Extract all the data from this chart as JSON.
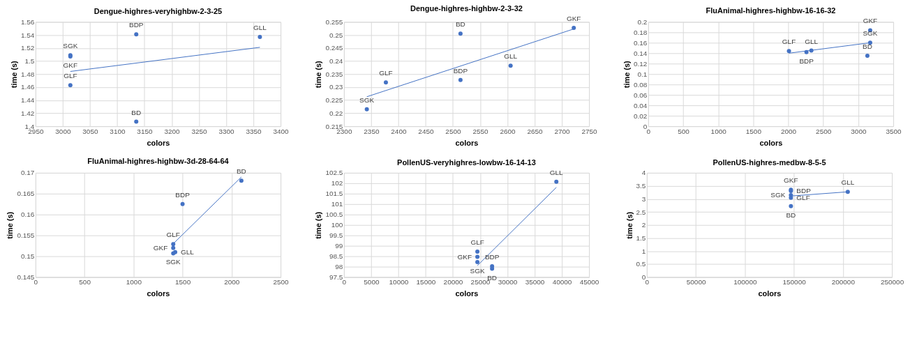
{
  "chart_data": [
    {
      "type": "scatter",
      "title": "Dengue-highres-veryhighbw-2-3-25",
      "xlabel": "colors",
      "ylabel": "time (s)",
      "xlim": [
        2950,
        3400
      ],
      "xticks": [
        2950,
        3000,
        3050,
        3100,
        3150,
        3200,
        3250,
        3300,
        3350,
        3400
      ],
      "ylim": [
        1.4,
        1.56
      ],
      "yticks": [
        1.4,
        1.42,
        1.44,
        1.46,
        1.48,
        1.5,
        1.52,
        1.54,
        1.56
      ],
      "grid": true,
      "marker": "circle",
      "series": [
        {
          "color": "#4472c4",
          "x": [
            3135,
            3362,
            3014,
            3014,
            3014,
            3135
          ],
          "values": [
            1.541,
            1.537,
            1.509,
            1.507,
            1.463,
            1.407
          ]
        },
        {
          "type": "line",
          "color": "#4472c4",
          "marker": "none",
          "x": [
            3014,
            3362
          ],
          "values": [
            1.484,
            1.521
          ]
        }
      ],
      "annotations": [
        {
          "text": "BDP",
          "x": 3135,
          "y": 1.541
        },
        {
          "text": "GLL",
          "x": 3362,
          "y": 1.537
        },
        {
          "text": "SGK",
          "x": 3014,
          "y": 1.509
        },
        {
          "text": "GKF",
          "x": 3014,
          "y": 1.507
        },
        {
          "text": "GLF",
          "x": 3014,
          "y": 1.463
        },
        {
          "text": "BD",
          "x": 3135,
          "y": 1.407
        }
      ]
    },
    {
      "type": "scatter",
      "title": "Dengue-highres-highbw-2-3-32",
      "xlabel": "colors",
      "ylabel": "time (s)",
      "xlim": [
        2300,
        2750
      ],
      "xticks": [
        2300,
        2350,
        2400,
        2450,
        2500,
        2550,
        2600,
        2650,
        2700,
        2750
      ],
      "ylim": [
        0.215,
        0.255
      ],
      "yticks": [
        0.215,
        0.22,
        0.225,
        0.23,
        0.235,
        0.24,
        0.245,
        0.25,
        0.255
      ],
      "grid": true,
      "marker": "circle",
      "series": [
        {
          "color": "#4472c4",
          "x": [
            2514,
            2722,
            2606,
            2514,
            2377,
            2342
          ],
          "values": [
            0.2505,
            0.2527,
            0.2382,
            0.2327,
            0.2318,
            0.2215
          ]
        },
        {
          "type": "line",
          "color": "#4472c4",
          "marker": "none",
          "x": [
            2342,
            2722
          ],
          "values": [
            0.2263,
            0.2523
          ]
        }
      ],
      "annotations": [
        {
          "text": "BD",
          "x": 2514,
          "y": 0.2505
        },
        {
          "text": "GKF",
          "x": 2722,
          "y": 0.2527
        },
        {
          "text": "GLL",
          "x": 2606,
          "y": 0.2382
        },
        {
          "text": "BDP",
          "x": 2514,
          "y": 0.2327
        },
        {
          "text": "GLF",
          "x": 2377,
          "y": 0.2318
        },
        {
          "text": "SGK",
          "x": 2342,
          "y": 0.2215
        }
      ]
    },
    {
      "type": "scatter",
      "title": "FluAnimal-highres-highbw-16-16-32",
      "xlabel": "colors",
      "ylabel": "time (s)",
      "xlim": [
        0,
        3500
      ],
      "xticks": [
        0,
        500,
        1000,
        1500,
        2000,
        2500,
        3000,
        3500
      ],
      "ylim": [
        0,
        0.2
      ],
      "yticks": [
        0,
        0.02,
        0.04,
        0.06,
        0.08,
        0.1,
        0.12,
        0.14,
        0.16,
        0.18,
        0.2
      ],
      "grid": true,
      "marker": "circle",
      "series": [
        {
          "color": "#4472c4",
          "x": [
            2010,
            2260,
            2330,
            3170,
            3170,
            3130
          ],
          "values": [
            0.144,
            0.142,
            0.145,
            0.184,
            0.16,
            0.135
          ]
        },
        {
          "type": "line",
          "color": "#4472c4",
          "marker": "none",
          "x": [
            2010,
            3170
          ],
          "values": [
            0.14,
            0.16
          ]
        }
      ],
      "annotations": [
        {
          "text": "GLF",
          "x": 2010,
          "y": 0.144
        },
        {
          "text": "BDP",
          "x": 2260,
          "y": 0.142
        },
        {
          "text": "GLL",
          "x": 2330,
          "y": 0.145
        },
        {
          "text": "GKF",
          "x": 3170,
          "y": 0.184
        },
        {
          "text": "SGK",
          "x": 3170,
          "y": 0.16
        },
        {
          "text": "BD",
          "x": 3130,
          "y": 0.135
        }
      ]
    },
    {
      "type": "scatter",
      "title": "FluAnimal-highres-highbw-3d-28-64-64",
      "xlabel": "colors",
      "ylabel": "time (s)",
      "xlim": [
        0,
        2500
      ],
      "xticks": [
        0,
        500,
        1000,
        1500,
        2000,
        2500
      ],
      "ylim": [
        0.145,
        0.17
      ],
      "yticks": [
        0.145,
        0.15,
        0.155,
        0.16,
        0.165,
        0.17
      ],
      "grid": true,
      "marker": "circle",
      "series": [
        {
          "color": "#4472c4",
          "x": [
            2100,
            1500,
            1405,
            1405,
            1425,
            1405
          ],
          "values": [
            0.1681,
            0.1625,
            0.1529,
            0.152,
            0.151,
            0.1507
          ]
        },
        {
          "type": "line",
          "color": "#4472c4",
          "marker": "none",
          "x": [
            1405,
            2100
          ],
          "values": [
            0.153,
            0.169
          ]
        }
      ],
      "annotations": [
        {
          "text": "BD",
          "x": 2100,
          "y": 0.1681
        },
        {
          "text": "BDP",
          "x": 1500,
          "y": 0.1625
        },
        {
          "text": "GLF",
          "x": 1405,
          "y": 0.1529
        },
        {
          "text": "GKF",
          "x": 1405,
          "y": 0.152
        },
        {
          "text": "GLL",
          "x": 1425,
          "y": 0.151
        },
        {
          "text": "SGK",
          "x": 1405,
          "y": 0.1507
        }
      ]
    },
    {
      "type": "scatter",
      "title": "PollenUS-veryhighres-lowbw-16-14-13",
      "xlabel": "colors",
      "ylabel": "time (s)",
      "xlim": [
        0,
        45000
      ],
      "xticks": [
        0,
        5000,
        10000,
        15000,
        20000,
        25000,
        30000,
        35000,
        40000,
        45000
      ],
      "ylim": [
        97.5,
        102.5
      ],
      "yticks": [
        97.5,
        98,
        98.5,
        99,
        99.5,
        100,
        100.5,
        101,
        101.5,
        102,
        102.5
      ],
      "grid": true,
      "marker": "circle",
      "series": [
        {
          "color": "#4472c4",
          "x": [
            39000,
            24500,
            24500,
            24500,
            27200,
            27200
          ],
          "values": [
            102.07,
            98.72,
            98.47,
            98.22,
            98.02,
            97.9
          ]
        },
        {
          "type": "line",
          "color": "#4472c4",
          "marker": "none",
          "x": [
            24500,
            39000
          ],
          "values": [
            98.05,
            101.8
          ]
        }
      ],
      "annotations": [
        {
          "text": "GLL",
          "x": 39000,
          "y": 102.07
        },
        {
          "text": "GLF",
          "x": 24500,
          "y": 98.72
        },
        {
          "text": "GKF",
          "x": 24500,
          "y": 98.47
        },
        {
          "text": "SGK",
          "x": 24500,
          "y": 98.22
        },
        {
          "text": "BDP",
          "x": 27200,
          "y": 98.02
        },
        {
          "text": "BD",
          "x": 27200,
          "y": 97.9
        }
      ]
    },
    {
      "type": "scatter",
      "title": "PollenUS-highres-medbw-8-5-5",
      "xlabel": "colors",
      "ylabel": "time (s)",
      "xlim": [
        0,
        250000
      ],
      "xticks": [
        0,
        50000,
        100000,
        150000,
        200000,
        250000
      ],
      "ylim": [
        0,
        4
      ],
      "yticks": [
        0,
        0.5,
        1,
        1.5,
        2,
        2.5,
        3,
        3.5,
        4
      ],
      "grid": true,
      "marker": "circle",
      "series": [
        {
          "color": "#4472c4",
          "x": [
            147000,
            147000,
            147000,
            147000,
            147000,
            205000
          ],
          "values": [
            3.35,
            3.3,
            3.14,
            3.04,
            2.72,
            3.27
          ]
        },
        {
          "type": "line",
          "color": "#4472c4",
          "marker": "none",
          "x": [
            147000,
            205000
          ],
          "values": [
            3.11,
            3.27
          ]
        }
      ],
      "annotations": [
        {
          "text": "GKF",
          "x": 147000,
          "y": 3.35
        },
        {
          "text": "BDP",
          "x": 147000,
          "y": 3.3
        },
        {
          "text": "SGK",
          "x": 147000,
          "y": 3.14
        },
        {
          "text": "GLF",
          "x": 147000,
          "y": 3.04
        },
        {
          "text": "BD",
          "x": 147000,
          "y": 2.72
        },
        {
          "text": "GLL",
          "x": 205000,
          "y": 3.27
        }
      ]
    }
  ]
}
